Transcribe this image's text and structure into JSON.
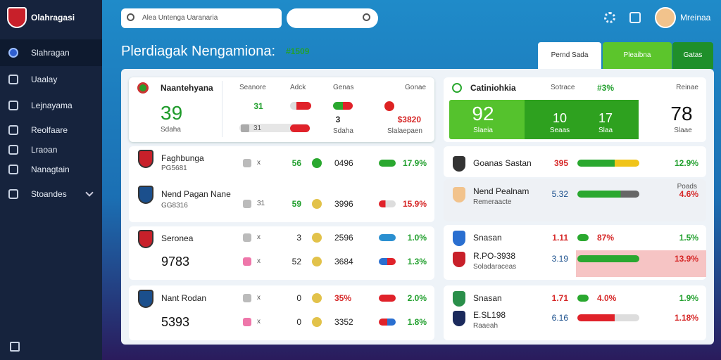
{
  "sidebar": {
    "logo": "Olahragasi",
    "nav": [
      "Slahragan",
      "Uaalay",
      "Lejnayama",
      "Reolfaare",
      "Lraoan",
      "Nanagtain",
      "Stoandes"
    ]
  },
  "topbar": {
    "search": "Alea Untenga Uaranaria",
    "user": "Mreinaa"
  },
  "page": {
    "title": "Plerdiagak Nengamiona:",
    "code": "#1509",
    "tabs": [
      "Pernd Sada",
      "Pleaibna",
      "Gatas"
    ]
  },
  "left": {
    "summary": {
      "name": "Naantehyana",
      "value": "39",
      "sub": "Sdaha",
      "headers": [
        "Seanore",
        "Adck",
        "Genas",
        "Gonae"
      ],
      "cells": [
        "31",
        "31",
        "3",
        "Sdaha",
        "$3820",
        "Slalaepaen"
      ]
    },
    "cards": [
      {
        "name": "Faghbunga",
        "code": "PG5681",
        "lines": [
          [
            "x",
            "56",
            "0496",
            "17.9%"
          ]
        ]
      },
      {
        "name": "Nend Pagan Nane",
        "code": "GG8316",
        "lines": [
          [
            "31",
            "59",
            "3996",
            "15.9%"
          ]
        ]
      },
      {
        "name": "Seronea",
        "code": "9783",
        "lines": [
          [
            "x",
            "3",
            "2596",
            "1.0%"
          ],
          [
            "x",
            "52",
            "3684",
            "1.3%"
          ]
        ]
      },
      {
        "name": "Nant Rodan",
        "code": "5393",
        "lines": [
          [
            "x",
            "0",
            "35%",
            "2.0%"
          ],
          [
            "x",
            "0",
            "3352",
            "1.8%"
          ]
        ]
      }
    ]
  },
  "right": {
    "summary": {
      "name": "Catiniohkia",
      "headers": [
        "Sotrace",
        "#3%",
        "Reinae"
      ],
      "big": "92",
      "big_sub": "Slaeia",
      "a": "10",
      "a_sub": "Seaas",
      "b": "17",
      "b_sub": "Slaa",
      "total": "78",
      "total_sub": "Slaae"
    },
    "tag": "Poads",
    "rows": [
      {
        "name": "Goanas Sastan",
        "value": "395",
        "pct": "12.9%"
      },
      {
        "name": "Nend Pealnam",
        "sub": "Remeraacte",
        "value": "5.32",
        "pct": "4.6%"
      },
      {
        "name": "Snasan",
        "value": "1.11",
        "mid": "87%",
        "pct": "1.5%"
      },
      {
        "name": "R.PO-3938",
        "sub": "Soladaraceas",
        "value": "3.19",
        "pct": "13.9%"
      },
      {
        "name": "Snasan",
        "value": "1.71",
        "mid": "4.0%",
        "pct": "1.9%"
      },
      {
        "name": "E.SL198",
        "sub": "Raaeah",
        "value": "6.16",
        "pct": "1.18%"
      }
    ]
  }
}
